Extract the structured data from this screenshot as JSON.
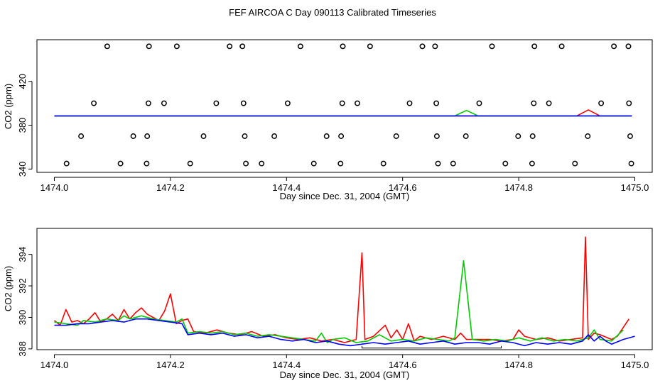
{
  "title": "FEF AIRCOA C  Day 090113  Calibrated Timeseries",
  "chart_data": [
    {
      "type": "scatter",
      "xlabel": "Day since Dec. 31, 2004 (GMT)",
      "ylabel": "CO2 (ppm)",
      "xlim": [
        1473.97,
        1475.03
      ],
      "ylim": [
        337,
        458
      ],
      "x_ticks": [
        "1474.0",
        "1474.2",
        "1474.4",
        "1474.6",
        "1474.8",
        "1475.0"
      ],
      "y_ticks": [
        "340",
        "380",
        "420"
      ],
      "grid": false,
      "points": [
        {
          "x": 1474.021,
          "y": 345
        },
        {
          "x": 1474.046,
          "y": 370
        },
        {
          "x": 1474.068,
          "y": 400
        },
        {
          "x": 1474.091,
          "y": 452
        },
        {
          "x": 1474.114,
          "y": 345
        },
        {
          "x": 1474.136,
          "y": 370
        },
        {
          "x": 1474.159,
          "y": 345
        },
        {
          "x": 1474.16,
          "y": 370
        },
        {
          "x": 1474.162,
          "y": 400
        },
        {
          "x": 1474.163,
          "y": 452
        },
        {
          "x": 1474.189,
          "y": 400
        },
        {
          "x": 1474.211,
          "y": 452
        },
        {
          "x": 1474.234,
          "y": 345
        },
        {
          "x": 1474.257,
          "y": 370
        },
        {
          "x": 1474.279,
          "y": 400
        },
        {
          "x": 1474.302,
          "y": 452
        },
        {
          "x": 1474.324,
          "y": 452
        },
        {
          "x": 1474.326,
          "y": 400
        },
        {
          "x": 1474.328,
          "y": 370
        },
        {
          "x": 1474.33,
          "y": 345
        },
        {
          "x": 1474.357,
          "y": 345
        },
        {
          "x": 1474.379,
          "y": 370
        },
        {
          "x": 1474.402,
          "y": 400
        },
        {
          "x": 1474.424,
          "y": 452
        },
        {
          "x": 1474.447,
          "y": 345
        },
        {
          "x": 1474.469,
          "y": 370
        },
        {
          "x": 1474.493,
          "y": 345
        },
        {
          "x": 1474.494,
          "y": 370
        },
        {
          "x": 1474.496,
          "y": 400
        },
        {
          "x": 1474.497,
          "y": 452
        },
        {
          "x": 1474.522,
          "y": 400
        },
        {
          "x": 1474.544,
          "y": 452
        },
        {
          "x": 1474.567,
          "y": 345
        },
        {
          "x": 1474.589,
          "y": 370
        },
        {
          "x": 1474.612,
          "y": 400
        },
        {
          "x": 1474.634,
          "y": 452
        },
        {
          "x": 1474.656,
          "y": 452
        },
        {
          "x": 1474.658,
          "y": 400
        },
        {
          "x": 1474.659,
          "y": 370
        },
        {
          "x": 1474.661,
          "y": 345
        },
        {
          "x": 1474.687,
          "y": 345
        },
        {
          "x": 1474.709,
          "y": 370
        },
        {
          "x": 1474.732,
          "y": 400
        },
        {
          "x": 1474.754,
          "y": 452
        },
        {
          "x": 1474.777,
          "y": 345
        },
        {
          "x": 1474.799,
          "y": 370
        },
        {
          "x": 1474.823,
          "y": 345
        },
        {
          "x": 1474.824,
          "y": 370
        },
        {
          "x": 1474.826,
          "y": 400
        },
        {
          "x": 1474.827,
          "y": 452
        },
        {
          "x": 1474.852,
          "y": 400
        },
        {
          "x": 1474.874,
          "y": 452
        },
        {
          "x": 1474.897,
          "y": 345
        },
        {
          "x": 1474.919,
          "y": 370
        },
        {
          "x": 1474.942,
          "y": 400
        },
        {
          "x": 1474.964,
          "y": 452
        },
        {
          "x": 1474.989,
          "y": 452
        },
        {
          "x": 1474.99,
          "y": 400
        },
        {
          "x": 1474.992,
          "y": 370
        },
        {
          "x": 1474.994,
          "y": 345
        }
      ],
      "series": [
        {
          "color": "#ff0000",
          "x": [
            1474.0,
            1474.53,
            1474.9,
            1474.92,
            1474.94,
            1474.995
          ],
          "y": [
            388.5,
            388.5,
            388.5,
            394,
            388.5,
            388.5
          ]
        },
        {
          "color": "#00cc00",
          "x": [
            1474.0,
            1474.69,
            1474.71,
            1474.73,
            1474.995
          ],
          "y": [
            388.5,
            388.5,
            393.5,
            388.5,
            388.5
          ]
        },
        {
          "color": "#0000ff",
          "x": [
            1474.0,
            1474.995
          ],
          "y": [
            388.5,
            388.5
          ]
        }
      ]
    },
    {
      "type": "line",
      "xlabel": "Day since Dec. 31, 2004 (GMT)",
      "ylabel": "CO2 (ppm)",
      "xlim": [
        1473.97,
        1475.03
      ],
      "ylim": [
        387.95,
        395.65
      ],
      "x_ticks": [
        "1474.0",
        "1474.2",
        "1474.4",
        "1474.6",
        "1474.8",
        "1475.0"
      ],
      "y_ticks": [
        "388",
        "390",
        "392",
        "394"
      ],
      "grid": false,
      "bracket": {
        "x": [
          1474.53,
          1474.77
        ],
        "y": 388.05
      },
      "series": [
        {
          "color": "#ff0000",
          "x": [
            1474.0,
            1474.01,
            1474.02,
            1474.03,
            1474.04,
            1474.05,
            1474.06,
            1474.07,
            1474.08,
            1474.09,
            1474.1,
            1474.11,
            1474.12,
            1474.13,
            1474.14,
            1474.15,
            1474.16,
            1474.17,
            1474.18,
            1474.19,
            1474.2,
            1474.21,
            1474.22,
            1474.23,
            1474.24,
            1474.26,
            1474.28,
            1474.3,
            1474.32,
            1474.34,
            1474.36,
            1474.38,
            1474.4,
            1474.42,
            1474.44,
            1474.46,
            1474.48,
            1474.5,
            1474.52,
            1474.53,
            1474.535,
            1474.55,
            1474.57,
            1474.58,
            1474.59,
            1474.6,
            1474.61,
            1474.62,
            1474.63,
            1474.65,
            1474.67,
            1474.69,
            1474.7,
            1474.71,
            1474.73,
            1474.75,
            1474.77,
            1474.79,
            1474.8,
            1474.81,
            1474.83,
            1474.85,
            1474.87,
            1474.89,
            1474.91,
            1474.915,
            1474.92,
            1474.93,
            1474.94,
            1474.96,
            1474.97,
            1474.99
          ],
          "y": [
            389.8,
            389.5,
            390.5,
            389.7,
            389.8,
            389.6,
            389.9,
            390.3,
            389.7,
            389.9,
            390.2,
            389.8,
            390.5,
            389.9,
            390.3,
            390.6,
            390.2,
            390.0,
            389.8,
            390.4,
            391.5,
            389.6,
            389.8,
            389.9,
            389.1,
            389.0,
            389.2,
            389.0,
            388.9,
            389.1,
            388.8,
            388.9,
            388.7,
            388.6,
            388.7,
            388.5,
            388.6,
            388.4,
            388.6,
            394.1,
            388.6,
            388.8,
            389.5,
            388.7,
            389.2,
            388.6,
            389.6,
            388.5,
            388.8,
            388.6,
            388.8,
            388.6,
            389.0,
            388.6,
            388.6,
            388.6,
            388.5,
            388.6,
            389.2,
            388.8,
            388.6,
            388.7,
            388.5,
            388.6,
            388.7,
            395.1,
            388.6,
            389.0,
            388.9,
            388.6,
            388.8,
            389.9
          ]
        },
        {
          "color": "#00cc00",
          "x": [
            1474.0,
            1474.02,
            1474.04,
            1474.05,
            1474.07,
            1474.09,
            1474.11,
            1474.12,
            1474.13,
            1474.15,
            1474.17,
            1474.19,
            1474.21,
            1474.22,
            1474.23,
            1474.25,
            1474.27,
            1474.29,
            1474.31,
            1474.33,
            1474.35,
            1474.37,
            1474.39,
            1474.41,
            1474.43,
            1474.45,
            1474.46,
            1474.47,
            1474.48,
            1474.5,
            1474.52,
            1474.54,
            1474.56,
            1474.58,
            1474.6,
            1474.62,
            1474.64,
            1474.66,
            1474.68,
            1474.69,
            1474.705,
            1474.72,
            1474.74,
            1474.76,
            1474.78,
            1474.8,
            1474.82,
            1474.84,
            1474.86,
            1474.88,
            1474.9,
            1474.92,
            1474.93,
            1474.94,
            1474.96,
            1474.98
          ],
          "y": [
            389.7,
            389.6,
            389.5,
            389.8,
            389.7,
            389.9,
            389.8,
            390.1,
            389.9,
            390.1,
            389.9,
            389.8,
            389.7,
            389.9,
            389.0,
            389.1,
            389.0,
            389.1,
            388.9,
            389.0,
            388.8,
            388.9,
            388.8,
            388.7,
            388.6,
            388.5,
            389.0,
            388.4,
            388.6,
            388.7,
            388.4,
            388.5,
            388.9,
            388.5,
            388.6,
            388.5,
            388.7,
            388.6,
            388.5,
            388.7,
            393.6,
            388.6,
            388.5,
            388.6,
            388.5,
            388.7,
            388.5,
            388.7,
            388.5,
            388.6,
            388.5,
            388.7,
            389.2,
            388.6,
            388.5,
            389.2
          ]
        },
        {
          "color": "#0000ff",
          "x": [
            1474.0,
            1474.02,
            1474.04,
            1474.06,
            1474.08,
            1474.1,
            1474.12,
            1474.14,
            1474.16,
            1474.18,
            1474.2,
            1474.22,
            1474.23,
            1474.25,
            1474.27,
            1474.29,
            1474.31,
            1474.33,
            1474.35,
            1474.37,
            1474.39,
            1474.41,
            1474.43,
            1474.45,
            1474.47,
            1474.49,
            1474.51,
            1474.53,
            1474.55,
            1474.57,
            1474.59,
            1474.61,
            1474.63,
            1474.65,
            1474.67,
            1474.69,
            1474.71,
            1474.73,
            1474.75,
            1474.77,
            1474.79,
            1474.81,
            1474.83,
            1474.85,
            1474.87,
            1474.89,
            1474.91,
            1474.92,
            1474.93,
            1474.94,
            1474.95,
            1474.96,
            1474.98,
            1475.0
          ],
          "y": [
            389.5,
            389.5,
            389.6,
            389.6,
            389.7,
            389.8,
            389.7,
            389.9,
            389.9,
            389.8,
            389.7,
            389.6,
            388.9,
            389.0,
            388.9,
            389.0,
            388.8,
            388.9,
            388.7,
            388.8,
            388.6,
            388.5,
            388.6,
            388.4,
            388.5,
            388.3,
            388.2,
            388.3,
            388.4,
            388.3,
            388.4,
            388.5,
            388.3,
            388.4,
            388.5,
            388.3,
            388.4,
            388.4,
            388.3,
            388.5,
            388.4,
            388.2,
            388.4,
            388.3,
            388.4,
            388.3,
            388.5,
            388.9,
            388.5,
            388.8,
            388.5,
            388.3,
            388.6,
            388.8
          ]
        }
      ]
    }
  ]
}
